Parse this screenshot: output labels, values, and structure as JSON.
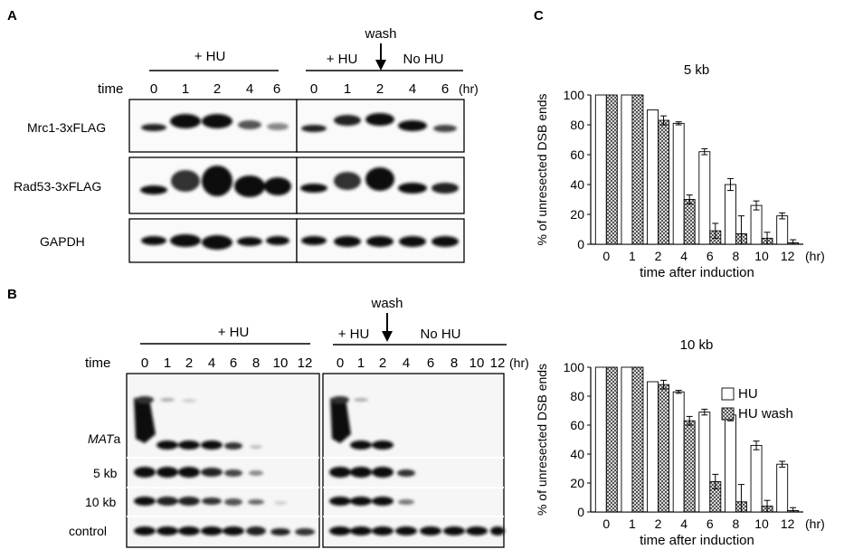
{
  "panel_a": {
    "letter": "A",
    "header_hu": "+ HU",
    "header_hu2": "+ HU",
    "wash": "wash",
    "no_hu": "No HU",
    "time_label": "time",
    "times_left": [
      "0",
      "1",
      "2",
      "4",
      "6"
    ],
    "times_right": [
      "0",
      "1",
      "2",
      "4",
      "6"
    ],
    "unit": "(hr)",
    "rows": [
      "Mrc1-3xFLAG",
      "Rad53-3xFLAG",
      "GAPDH"
    ]
  },
  "panel_b": {
    "letter": "B",
    "header_hu": "+ HU",
    "header_hu2": "+ HU",
    "wash": "wash",
    "no_hu": "No HU",
    "time_label": "time",
    "times_left": [
      "0",
      "1",
      "2",
      "4",
      "6",
      "8",
      "10",
      "12"
    ],
    "times_right": [
      "0",
      "1",
      "2",
      "4",
      "6",
      "8",
      "10",
      "12"
    ],
    "unit": "(hr)",
    "rows": [
      "MATa",
      "5 kb",
      "10 kb",
      "control"
    ],
    "mat_italic": "MAT",
    "mat_plain": "a"
  },
  "panel_c": {
    "letter": "C"
  },
  "chart_data": [
    {
      "type": "bar",
      "title": "5 kb",
      "categories": [
        "0",
        "1",
        "2",
        "4",
        "6",
        "8",
        "10",
        "12"
      ],
      "unit": "(hr)",
      "xlabel": "time after induction",
      "ylabel": "% of unresected DSB ends",
      "ylim": [
        0,
        100
      ],
      "yticks": [
        "0",
        "20",
        "40",
        "60",
        "80",
        "100"
      ],
      "series": [
        {
          "name": "HU",
          "values": [
            100,
            100,
            90,
            81,
            62,
            40,
            26,
            19
          ],
          "errors": [
            0,
            0,
            0,
            1,
            2,
            4,
            3,
            2
          ]
        },
        {
          "name": "HU wash",
          "values": [
            100,
            100,
            83,
            30,
            9,
            7,
            4,
            1
          ],
          "errors": [
            0,
            0,
            3,
            3,
            5,
            12,
            4,
            2
          ]
        }
      ]
    },
    {
      "type": "bar",
      "title": "10 kb",
      "categories": [
        "0",
        "1",
        "2",
        "4",
        "6",
        "8",
        "10",
        "12"
      ],
      "unit": "(hr)",
      "xlabel": "time after induction",
      "ylabel": "% of unresected DSB ends",
      "ylim": [
        0,
        100
      ],
      "yticks": [
        "0",
        "20",
        "40",
        "60",
        "80",
        "100"
      ],
      "legend_position": "top-right",
      "series": [
        {
          "name": "HU",
          "values": [
            100,
            100,
            90,
            83,
            69,
            67,
            46,
            33
          ],
          "errors": [
            0,
            0,
            0,
            1,
            2,
            4,
            3,
            2
          ]
        },
        {
          "name": "HU wash",
          "values": [
            100,
            100,
            88,
            63,
            21,
            7,
            4,
            1
          ],
          "errors": [
            0,
            0,
            3,
            3,
            5,
            12,
            4,
            2
          ]
        }
      ]
    }
  ]
}
